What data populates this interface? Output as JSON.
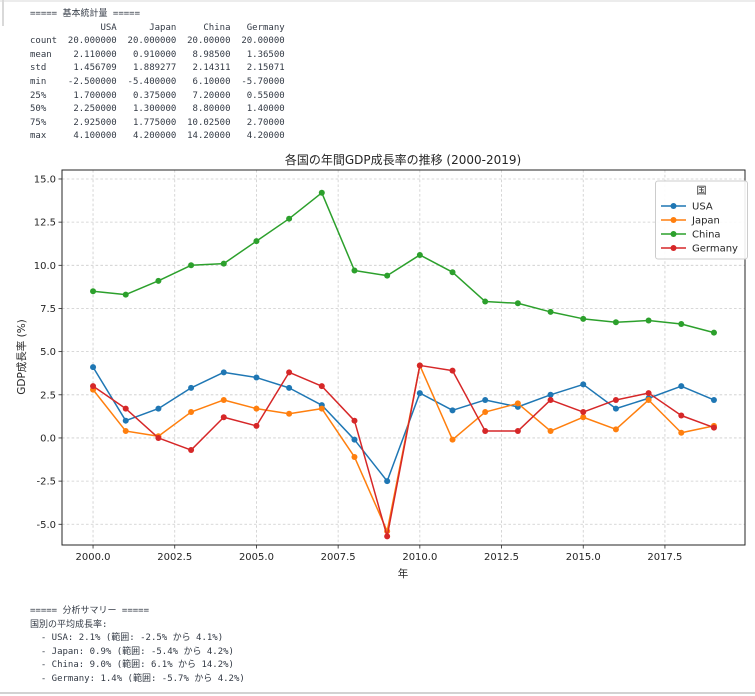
{
  "terminal": {
    "stats": {
      "heading": "===== 基本統計量 =====",
      "columns": [
        "USA",
        "Japan",
        "China",
        "Germany"
      ],
      "rows": [
        {
          "label": "count",
          "values": [
            "20.000000",
            "20.000000",
            "20.00000",
            "20.00000"
          ]
        },
        {
          "label": "mean",
          "values": [
            "2.110000",
            "0.910000",
            "8.98500",
            "1.36500"
          ]
        },
        {
          "label": "std",
          "values": [
            "1.456709",
            "1.889277",
            "2.14311",
            "2.15071"
          ]
        },
        {
          "label": "min",
          "values": [
            "-2.500000",
            "-5.400000",
            "6.10000",
            "-5.70000"
          ]
        },
        {
          "label": "25%",
          "values": [
            "1.700000",
            "0.375000",
            "7.20000",
            "0.55000"
          ]
        },
        {
          "label": "50%",
          "values": [
            "2.250000",
            "1.300000",
            "8.80000",
            "1.40000"
          ]
        },
        {
          "label": "75%",
          "values": [
            "2.925000",
            "1.775000",
            "10.02500",
            "2.70000"
          ]
        },
        {
          "label": "max",
          "values": [
            "4.100000",
            "4.200000",
            "14.20000",
            "4.20000"
          ]
        }
      ]
    },
    "summary": {
      "heading": "===== 分析サマリー =====",
      "intro": "国別の平均成長率:",
      "items": [
        "  - USA: 2.1% (範囲: -2.5% から 4.1%)",
        "  - Japan: 0.9% (範囲: -5.4% から 4.2%)",
        "  - China: 9.0% (範囲: 6.1% から 14.2%)",
        "  - Germany: 1.4% (範囲: -5.7% から 4.2%)"
      ]
    }
  },
  "chart_data": {
    "type": "line",
    "title": "各国の年間GDP成長率の推移 (2000-2019)",
    "xlabel": "年",
    "ylabel": "GDP成長率 (%)",
    "legend_title": "国",
    "legend_position": "upper right",
    "grid": true,
    "grid_style": "dashed",
    "x": [
      2000,
      2001,
      2002,
      2003,
      2004,
      2005,
      2006,
      2007,
      2008,
      2009,
      2010,
      2011,
      2012,
      2013,
      2014,
      2015,
      2016,
      2017,
      2018,
      2019
    ],
    "xticks": [
      2000.0,
      2002.5,
      2005.0,
      2007.5,
      2010.0,
      2012.5,
      2015.0,
      2017.5
    ],
    "yticks": [
      15.0,
      12.5,
      10.0,
      7.5,
      5.0,
      2.5,
      0.0,
      -2.5,
      -5.0
    ],
    "xlim": [
      1999.05,
      2019.95
    ],
    "ylim": [
      -6.2,
      15.52
    ],
    "series": [
      {
        "name": "USA",
        "color": "#1f77b4",
        "marker": "circle",
        "values": [
          4.1,
          1.0,
          1.7,
          2.9,
          3.8,
          3.5,
          2.9,
          1.9,
          -0.1,
          -2.5,
          2.6,
          1.6,
          2.2,
          1.8,
          2.5,
          3.1,
          1.7,
          2.3,
          3.0,
          2.2
        ]
      },
      {
        "name": "Japan",
        "color": "#ff7f0e",
        "marker": "circle",
        "values": [
          2.8,
          0.4,
          0.1,
          1.5,
          2.2,
          1.7,
          1.4,
          1.7,
          -1.1,
          -5.4,
          4.2,
          -0.1,
          1.5,
          2.0,
          0.4,
          1.2,
          0.5,
          2.2,
          0.3,
          0.7
        ]
      },
      {
        "name": "China",
        "color": "#2ca02c",
        "marker": "circle",
        "values": [
          8.5,
          8.3,
          9.1,
          10.0,
          10.1,
          11.4,
          12.7,
          14.2,
          9.7,
          9.4,
          10.6,
          9.6,
          7.9,
          7.8,
          7.3,
          6.9,
          6.7,
          6.8,
          6.6,
          6.1
        ]
      },
      {
        "name": "Germany",
        "color": "#d62728",
        "marker": "circle",
        "values": [
          3.0,
          1.7,
          0.0,
          -0.7,
          1.2,
          0.7,
          3.8,
          3.0,
          1.0,
          -5.7,
          4.2,
          3.9,
          0.4,
          0.4,
          2.2,
          1.5,
          2.2,
          2.6,
          1.3,
          0.6
        ]
      }
    ],
    "colors": {
      "grid": "#cccccc",
      "spine": "#262626",
      "legend_border": "#cccccc",
      "terminal_text": "#333a45"
    }
  }
}
